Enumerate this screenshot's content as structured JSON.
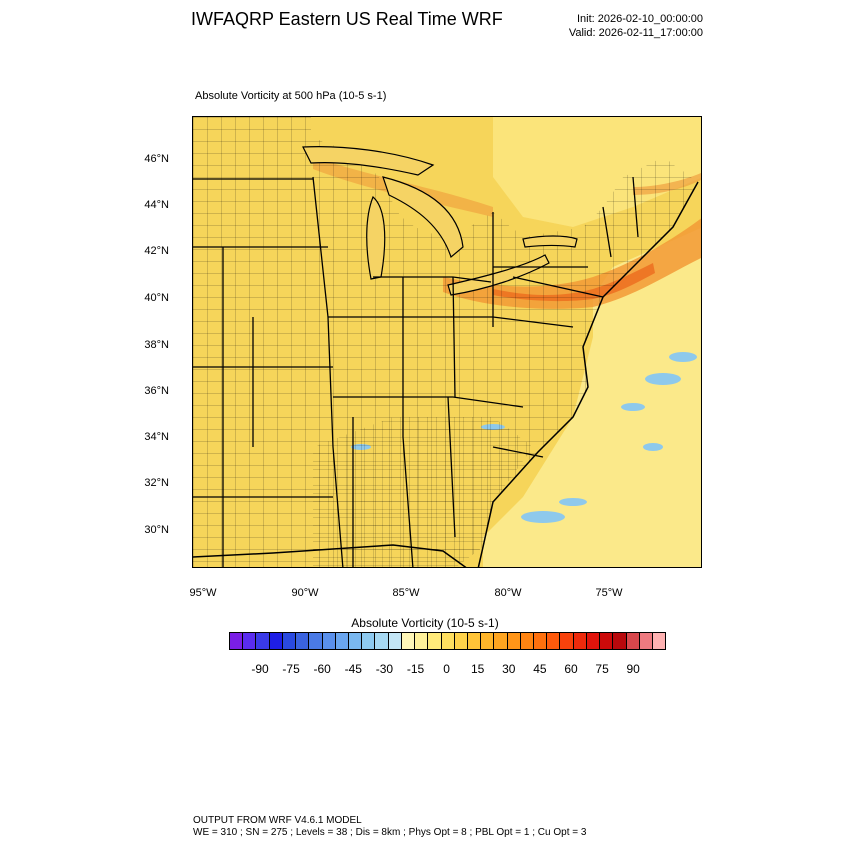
{
  "header": {
    "title": "IWFAQRP Eastern US Real Time WRF",
    "init": "Init: 2026-02-10_00:00:00",
    "valid": "Valid: 2026-02-11_17:00:00"
  },
  "map": {
    "subtitle": "Absolute Vorticity at 500 hPa   (10-5 s-1)",
    "lat_labels": [
      "46°N",
      "44°N",
      "42°N",
      "40°N",
      "38°N",
      "36°N",
      "34°N",
      "32°N",
      "30°N"
    ],
    "lon_labels": [
      "95°W",
      "90°W",
      "85°W",
      "80°W",
      "75°W"
    ],
    "background_color": "#f7d75a",
    "ocean_color": "#fbea8a",
    "max_vorticity_color": "#f39a32",
    "negative_vorticity_color": "#8ec9ec"
  },
  "colorbar": {
    "title": "Absolute Vorticity  (10-5 s-1)",
    "labels": [
      "-90",
      "-75",
      "-60",
      "-45",
      "-30",
      "-15",
      "0",
      "15",
      "30",
      "45",
      "60",
      "75",
      "90"
    ],
    "colors": [
      "#7a1ee6",
      "#5a2cf0",
      "#3a3ae8",
      "#1e1ee6",
      "#2a4ae0",
      "#3a63e0",
      "#4a7ae6",
      "#5a90ec",
      "#6aa6f0",
      "#7ab8f0",
      "#8ecaf0",
      "#a6d8f2",
      "#c4e6f6",
      "#fff7b8",
      "#fff19a",
      "#ffea7a",
      "#ffdf60",
      "#ffd24a",
      "#ffc438",
      "#ffb52a",
      "#ffa520",
      "#ff9518",
      "#ff8412",
      "#ff700e",
      "#ff5a0c",
      "#f8420c",
      "#ee2a0c",
      "#e0140c",
      "#cc0a0a",
      "#b8080c",
      "#d8474c",
      "#ee7a80",
      "#ffb2b2"
    ]
  },
  "footer": {
    "line1": "OUTPUT FROM WRF V4.6.1 MODEL",
    "line2": "WE = 310 ; SN = 275 ; Levels = 38 ; Dis = 8km ; Phys Opt = 8 ; PBL Opt = 1 ; Cu Opt = 3"
  }
}
